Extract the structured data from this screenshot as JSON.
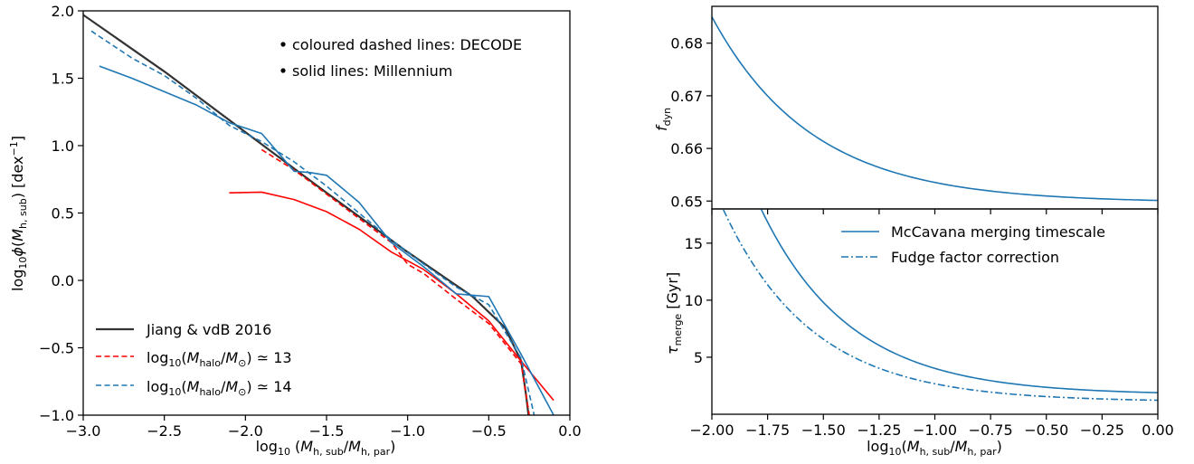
{
  "chart_data": [
    {
      "type": "line",
      "ylabel": "log₁₀ φ(M_h,sub)  [dex⁻¹]",
      "xlabel": "log₁₀ (M_h,sub / M_h,par)",
      "xlim": [
        -3.0,
        0.0
      ],
      "ylim": [
        -1.0,
        2.0
      ],
      "xticks": [
        -3.0,
        -2.5,
        -2.0,
        -1.5,
        -1.0,
        -0.5,
        0.0
      ],
      "xtick_labels": [
        "−3.0",
        "−2.5",
        "−2.0",
        "−1.5",
        "−1.0",
        "−0.5",
        "0.0"
      ],
      "yticks": [
        -1.0,
        -0.5,
        0.0,
        0.5,
        1.0,
        1.5,
        2.0
      ],
      "ytick_labels": [
        "−1.0",
        "−0.5",
        "0.0",
        "0.5",
        "1.0",
        "1.5",
        "2.0"
      ],
      "annotations": [
        "coloured dashed lines: DECODE",
        "solid lines: Millennium"
      ],
      "legend_position": "lower-left",
      "legend": [
        {
          "label": "Jiang & vdB 2016",
          "color": "#333333",
          "style": "solid"
        },
        {
          "label": "log₁₀(M_halo/M_⊙) ≃ 13",
          "color": "#ff0000",
          "style": "dashed"
        },
        {
          "label": "log₁₀(M_halo/M_⊙) ≃ 14",
          "color": "#1f77b4",
          "style": "dashed"
        }
      ],
      "series": [
        {
          "color": "#333333",
          "style": "solid",
          "width": 2.2,
          "x": [
            -3.0,
            -2.5,
            -2.0,
            -1.5,
            -1.0,
            -0.6,
            -0.4,
            -0.3,
            -0.27,
            -0.25
          ],
          "y": [
            1.97,
            1.55,
            1.1,
            0.65,
            0.21,
            -0.12,
            -0.35,
            -0.6,
            -0.85,
            -1.05
          ]
        },
        {
          "color": "#ff0000",
          "style": "solid",
          "width": 1.6,
          "x": [
            -2.1,
            -1.9,
            -1.7,
            -1.5,
            -1.3,
            -1.1,
            -0.9,
            -0.7,
            -0.5,
            -0.3,
            -0.1
          ],
          "y": [
            0.65,
            0.655,
            0.6,
            0.51,
            0.38,
            0.21,
            0.08,
            -0.1,
            -0.3,
            -0.6,
            -0.89
          ]
        },
        {
          "color": "#ff0000",
          "style": "dashed",
          "width": 1.6,
          "x": [
            -1.9,
            -1.7,
            -1.5,
            -1.3,
            -1.1,
            -1.0,
            -0.9,
            -0.7,
            -0.5,
            -0.3,
            -0.25
          ],
          "y": [
            0.97,
            0.82,
            0.64,
            0.46,
            0.28,
            0.12,
            0.05,
            -0.14,
            -0.32,
            -0.62,
            -1.0
          ]
        },
        {
          "color": "#1f77b4",
          "style": "solid",
          "width": 1.6,
          "x": [
            -2.9,
            -2.7,
            -2.5,
            -2.3,
            -2.1,
            -1.9,
            -1.7,
            -1.6,
            -1.5,
            -1.3,
            -1.1,
            -0.9,
            -0.7,
            -0.5,
            -0.3,
            -0.1
          ],
          "y": [
            1.59,
            1.5,
            1.4,
            1.3,
            1.17,
            1.09,
            0.81,
            0.8,
            0.78,
            0.58,
            0.28,
            0.1,
            -0.1,
            -0.12,
            -0.55,
            -1.0
          ]
        },
        {
          "color": "#1f77b4",
          "style": "dashed",
          "width": 1.6,
          "x": [
            -2.95,
            -2.7,
            -2.5,
            -2.3,
            -2.1,
            -1.9,
            -1.7,
            -1.5,
            -1.3,
            -1.1,
            -0.9,
            -0.7,
            -0.5,
            -0.3,
            -0.22
          ],
          "y": [
            1.85,
            1.65,
            1.52,
            1.35,
            1.15,
            1.03,
            0.88,
            0.7,
            0.5,
            0.3,
            0.12,
            -0.05,
            -0.18,
            -0.58,
            -1.0
          ]
        }
      ]
    },
    {
      "type": "line",
      "ylabel": "f_dyn",
      "xlim": [
        -2.0,
        0.0
      ],
      "ylim": [
        0.6485,
        0.687
      ],
      "yticks": [
        0.65,
        0.66,
        0.67,
        0.68
      ],
      "ytick_labels": [
        "0.65",
        "0.66",
        "0.67",
        "0.68"
      ],
      "series": [
        {
          "color": "#1f77b4",
          "style": "solid",
          "width": 1.6,
          "formula": "0.6497 + 0.0353*exp(-2.22*(x+2))"
        }
      ]
    },
    {
      "type": "line",
      "ylabel": "τ_merge [Gyr]",
      "xlabel": "log₁₀(M_h,sub / M_h,par)",
      "xlim": [
        -2.0,
        0.0
      ],
      "ylim": [
        0.0,
        18.0
      ],
      "xticks": [
        -2.0,
        -1.75,
        -1.5,
        -1.25,
        -1.0,
        -0.75,
        -0.5,
        -0.25,
        0.0
      ],
      "xtick_labels": [
        "−2.00",
        "−1.75",
        "−1.50",
        "−1.25",
        "−1.00",
        "−0.75",
        "−0.50",
        "−0.25",
        "0.00"
      ],
      "yticks": [
        5,
        10,
        15
      ],
      "ytick_labels": [
        "5",
        "10",
        "15"
      ],
      "legend_position": "top-right",
      "legend": [
        {
          "label": "McCavana merging timescale",
          "color": "#1f77b4",
          "style": "solid"
        },
        {
          "label": "Fudge factor correction",
          "color": "#1f77b4",
          "style": "dashdot"
        }
      ],
      "series": [
        {
          "color": "#1f77b4",
          "style": "solid",
          "width": 1.6,
          "formula": "1.7 + 28.3*exp(-2.5*(x+2))"
        },
        {
          "color": "#1f77b4",
          "style": "dashdot",
          "width": 1.6,
          "formula": "1.1 + 16.9*exp(-2.5*(x+1.95))"
        }
      ]
    }
  ]
}
